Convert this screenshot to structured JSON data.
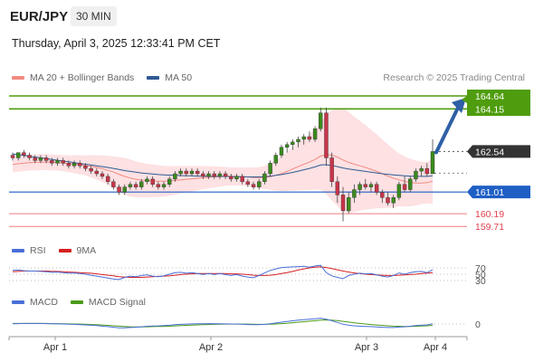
{
  "header": {
    "symbol": "EUR/JPY",
    "interval": "30 MIN",
    "datetime": "Thursday, April 3, 2025 12:33:41 PM CET"
  },
  "legend": {
    "bollinger": {
      "label": "MA 20 + Bollinger Bands",
      "color": "#f28b82"
    },
    "ma50": {
      "label": "MA 50",
      "color": "#2f5a93"
    },
    "credit": "Research © 2025 Trading Central"
  },
  "rsi_legend": {
    "rsi": "RSI",
    "rsi_color": "#4a6fd8",
    "ma": "9MA",
    "ma_color": "#d62020"
  },
  "macd_legend": {
    "macd": "MACD",
    "macd_color": "#4a6fd8",
    "signal": "MACD Signal",
    "signal_color": "#4a9a1a"
  },
  "chart_data": [
    {
      "type": "candlestick",
      "x_tick_labels": [
        "Apr 1",
        "Apr 2",
        "Apr 3",
        "Apr 4"
      ],
      "y_range": [
        159.2,
        165.2
      ],
      "current_price": 162.54,
      "resistance_levels": [
        164.64,
        164.15
      ],
      "support_levels": [
        161.01,
        160.19,
        159.71
      ],
      "level_colors": {
        "resistance": "#4f9d0e",
        "pivot": "#1f5fc4",
        "support": "#f07b84",
        "current": "#333333"
      },
      "target_arrow": {
        "from": 162.54,
        "to": 164.64
      },
      "candles": [
        [
          162.4,
          162.5,
          162.2,
          162.3
        ],
        [
          162.3,
          162.5,
          162.2,
          162.5
        ],
        [
          162.5,
          162.6,
          162.3,
          162.4
        ],
        [
          162.4,
          162.5,
          162.2,
          162.3
        ],
        [
          162.3,
          162.4,
          162.1,
          162.2
        ],
        [
          162.2,
          162.4,
          162.1,
          162.3
        ],
        [
          162.3,
          162.4,
          162.1,
          162.2
        ],
        [
          162.2,
          162.3,
          162.0,
          162.1
        ],
        [
          162.1,
          162.3,
          162.0,
          162.2
        ],
        [
          162.2,
          162.3,
          162.0,
          162.1
        ],
        [
          162.1,
          162.2,
          161.9,
          162.0
        ],
        [
          162.0,
          162.2,
          161.9,
          162.1
        ],
        [
          162.1,
          162.2,
          161.9,
          162.0
        ],
        [
          162.0,
          162.1,
          161.8,
          161.9
        ],
        [
          161.9,
          162.0,
          161.7,
          161.8
        ],
        [
          161.8,
          161.9,
          161.6,
          161.7
        ],
        [
          161.7,
          161.8,
          161.5,
          161.6
        ],
        [
          161.6,
          161.7,
          161.3,
          161.4
        ],
        [
          161.4,
          161.5,
          161.1,
          161.2
        ],
        [
          161.2,
          161.3,
          160.9,
          161.0
        ],
        [
          161.0,
          161.3,
          160.9,
          161.2
        ],
        [
          161.2,
          161.4,
          161.1,
          161.3
        ],
        [
          161.3,
          161.4,
          161.1,
          161.2
        ],
        [
          161.2,
          161.5,
          161.1,
          161.4
        ],
        [
          161.4,
          161.6,
          161.3,
          161.5
        ],
        [
          161.5,
          161.6,
          161.2,
          161.3
        ],
        [
          161.3,
          161.4,
          161.1,
          161.2
        ],
        [
          161.2,
          161.4,
          161.1,
          161.3
        ],
        [
          161.3,
          161.6,
          161.2,
          161.5
        ],
        [
          161.5,
          161.8,
          161.4,
          161.7
        ],
        [
          161.7,
          161.9,
          161.6,
          161.8
        ],
        [
          161.8,
          161.9,
          161.6,
          161.7
        ],
        [
          161.7,
          161.9,
          161.6,
          161.8
        ],
        [
          161.8,
          161.9,
          161.6,
          161.7
        ],
        [
          161.7,
          161.8,
          161.5,
          161.6
        ],
        [
          161.6,
          161.8,
          161.5,
          161.7
        ],
        [
          161.7,
          161.8,
          161.5,
          161.6
        ],
        [
          161.6,
          161.8,
          161.5,
          161.7
        ],
        [
          161.7,
          161.8,
          161.5,
          161.6
        ],
        [
          161.6,
          161.7,
          161.4,
          161.5
        ],
        [
          161.5,
          161.7,
          161.4,
          161.6
        ],
        [
          161.6,
          161.7,
          161.3,
          161.4
        ],
        [
          161.4,
          161.5,
          161.2,
          161.3
        ],
        [
          161.3,
          161.4,
          161.1,
          161.2
        ],
        [
          161.2,
          161.5,
          161.1,
          161.4
        ],
        [
          161.4,
          161.8,
          161.3,
          161.7
        ],
        [
          161.7,
          162.2,
          161.6,
          162.1
        ],
        [
          162.1,
          162.5,
          162.0,
          162.4
        ],
        [
          162.4,
          162.8,
          162.3,
          162.7
        ],
        [
          162.7,
          162.9,
          162.5,
          162.8
        ],
        [
          162.8,
          163.0,
          162.6,
          162.9
        ],
        [
          162.9,
          163.1,
          162.7,
          163.0
        ],
        [
          163.0,
          163.2,
          162.8,
          163.1
        ],
        [
          163.1,
          163.3,
          162.9,
          163.0
        ],
        [
          163.0,
          163.5,
          162.9,
          163.4
        ],
        [
          163.4,
          164.2,
          163.3,
          164.0
        ],
        [
          164.0,
          164.2,
          162.0,
          162.3
        ],
        [
          162.3,
          162.5,
          161.2,
          161.4
        ],
        [
          161.4,
          161.6,
          160.6,
          160.9
        ],
        [
          160.9,
          161.2,
          159.9,
          160.3
        ],
        [
          160.3,
          161.0,
          160.2,
          160.8
        ],
        [
          160.8,
          161.3,
          160.6,
          161.1
        ],
        [
          161.1,
          161.4,
          160.9,
          161.3
        ],
        [
          161.3,
          161.5,
          161.1,
          161.2
        ],
        [
          161.2,
          161.4,
          161.0,
          161.3
        ],
        [
          161.3,
          161.4,
          160.9,
          161.0
        ],
        [
          161.0,
          161.1,
          160.6,
          160.8
        ],
        [
          160.8,
          161.0,
          160.5,
          160.6
        ],
        [
          160.6,
          160.9,
          160.4,
          160.8
        ],
        [
          160.8,
          161.4,
          160.7,
          161.3
        ],
        [
          161.3,
          161.6,
          161.0,
          161.1
        ],
        [
          161.1,
          161.6,
          161.0,
          161.5
        ],
        [
          161.5,
          161.9,
          161.4,
          161.8
        ],
        [
          161.8,
          162.0,
          161.6,
          161.9
        ],
        [
          161.9,
          162.1,
          161.6,
          161.7
        ],
        [
          161.7,
          163.0,
          161.7,
          162.54
        ]
      ],
      "ma20": [
        162.05,
        162.08,
        162.1,
        162.12,
        162.13,
        162.14,
        162.14,
        162.13,
        162.12,
        162.1,
        162.08,
        162.06,
        162.04,
        162.01,
        161.98,
        161.94,
        161.89,
        161.83,
        161.76,
        161.68,
        161.6,
        161.54,
        161.49,
        161.46,
        161.44,
        161.43,
        161.42,
        161.42,
        161.43,
        161.45,
        161.47,
        161.49,
        161.51,
        161.53,
        161.55,
        161.57,
        161.58,
        161.59,
        161.6,
        161.6,
        161.6,
        161.59,
        161.58,
        161.56,
        161.55,
        161.56,
        161.59,
        161.64,
        161.71,
        161.79,
        161.88,
        161.97,
        162.06,
        162.14,
        162.24,
        162.37,
        162.42,
        162.4,
        162.33,
        162.22,
        162.13,
        162.06,
        162.0,
        161.94,
        161.87,
        161.79,
        161.7,
        161.61,
        161.53,
        161.47,
        161.41,
        161.37,
        161.35,
        161.35,
        161.36,
        161.42
      ],
      "ma50": [
        162.45,
        162.42,
        162.39,
        162.36,
        162.33,
        162.3,
        162.27,
        162.24,
        162.21,
        162.18,
        162.15,
        162.12,
        162.09,
        162.06,
        162.03,
        162.0,
        161.97,
        161.94,
        161.9,
        161.86,
        161.82,
        161.79,
        161.76,
        161.73,
        161.71,
        161.69,
        161.67,
        161.66,
        161.65,
        161.64,
        161.63,
        161.62,
        161.62,
        161.61,
        161.61,
        161.6,
        161.6,
        161.6,
        161.6,
        161.59,
        161.59,
        161.59,
        161.58,
        161.58,
        161.58,
        161.59,
        161.61,
        161.64,
        161.67,
        161.71,
        161.75,
        161.8,
        161.85,
        161.9,
        161.96,
        162.03,
        162.04,
        162.01,
        161.97,
        161.92,
        161.88,
        161.85,
        161.82,
        161.79,
        161.76,
        161.73,
        161.7,
        161.68,
        161.66,
        161.64,
        161.62,
        161.61,
        161.6,
        161.6,
        161.6,
        161.62
      ],
      "band_width": [
        0.3,
        0.3,
        0.3,
        0.3,
        0.3,
        0.3,
        0.3,
        0.3,
        0.3,
        0.3,
        0.32,
        0.34,
        0.36,
        0.38,
        0.42,
        0.46,
        0.5,
        0.55,
        0.6,
        0.65,
        0.7,
        0.7,
        0.68,
        0.66,
        0.64,
        0.62,
        0.6,
        0.58,
        0.56,
        0.54,
        0.52,
        0.5,
        0.48,
        0.46,
        0.44,
        0.42,
        0.4,
        0.38,
        0.36,
        0.34,
        0.34,
        0.34,
        0.36,
        0.38,
        0.4,
        0.44,
        0.5,
        0.58,
        0.66,
        0.74,
        0.82,
        0.9,
        0.98,
        1.06,
        1.14,
        1.28,
        1.5,
        1.7,
        1.85,
        1.95,
        1.9,
        1.8,
        1.7,
        1.6,
        1.5,
        1.4,
        1.3,
        1.2,
        1.1,
        1.0,
        0.95,
        0.9,
        0.85,
        0.8,
        0.78,
        0.85
      ]
    },
    {
      "type": "line",
      "name": "RSI",
      "y_tick_labels": [
        "70",
        "50",
        "30"
      ],
      "y_range": [
        20,
        80
      ],
      "rsi": [
        62,
        63,
        61,
        60,
        60,
        59,
        58,
        56,
        57,
        55,
        53,
        54,
        52,
        50,
        47,
        44,
        41,
        38,
        35,
        33,
        40,
        44,
        42,
        46,
        48,
        44,
        42,
        45,
        50,
        55,
        56,
        53,
        55,
        52,
        49,
        52,
        49,
        52,
        49,
        46,
        49,
        44,
        41,
        39,
        46,
        54,
        62,
        67,
        71,
        72,
        73,
        74,
        75,
        72,
        76,
        78,
        55,
        45,
        40,
        36,
        46,
        50,
        53,
        51,
        52,
        48,
        44,
        41,
        46,
        54,
        50,
        55,
        58,
        59,
        55,
        64
      ],
      "ma9": [
        58,
        59,
        60,
        60,
        60,
        60,
        60,
        59,
        59,
        58,
        57,
        56,
        55,
        54,
        53,
        51,
        49,
        47,
        45,
        42,
        41,
        40,
        40,
        40,
        41,
        42,
        43,
        44,
        45,
        47,
        49,
        50,
        51,
        52,
        52,
        52,
        52,
        52,
        52,
        51,
        51,
        50,
        49,
        47,
        46,
        46,
        47,
        49,
        52,
        55,
        59,
        63,
        67,
        70,
        72,
        73,
        71,
        68,
        64,
        60,
        57,
        54,
        52,
        50,
        49,
        48,
        47,
        46,
        46,
        47,
        48,
        49,
        50,
        52,
        53,
        55
      ]
    },
    {
      "type": "line",
      "name": "MACD",
      "y_tick_labels": [
        "0"
      ],
      "y_range": [
        -0.6,
        0.6
      ],
      "macd": [
        0.02,
        0.03,
        0.04,
        0.04,
        0.04,
        0.04,
        0.03,
        0.02,
        0.01,
        0,
        -0.02,
        -0.03,
        -0.05,
        -0.07,
        -0.1,
        -0.13,
        -0.17,
        -0.21,
        -0.26,
        -0.3,
        -0.3,
        -0.28,
        -0.26,
        -0.22,
        -0.18,
        -0.16,
        -0.15,
        -0.13,
        -0.1,
        -0.06,
        -0.03,
        -0.01,
        0.01,
        0.02,
        0.02,
        0.03,
        0.02,
        0.02,
        0.01,
        0,
        0,
        -0.02,
        -0.04,
        -0.06,
        -0.06,
        -0.03,
        0.02,
        0.08,
        0.14,
        0.2,
        0.25,
        0.3,
        0.34,
        0.37,
        0.41,
        0.46,
        0.38,
        0.26,
        0.12,
        -0.02,
        -0.09,
        -0.14,
        -0.17,
        -0.19,
        -0.21,
        -0.23,
        -0.26,
        -0.28,
        -0.28,
        -0.24,
        -0.22,
        -0.18,
        -0.13,
        -0.09,
        -0.07,
        0.02
      ],
      "signal": [
        0.04,
        0.04,
        0.04,
        0.04,
        0.04,
        0.04,
        0.04,
        0.03,
        0.03,
        0.02,
        0.01,
        0,
        -0.01,
        -0.02,
        -0.04,
        -0.06,
        -0.08,
        -0.11,
        -0.14,
        -0.17,
        -0.2,
        -0.22,
        -0.23,
        -0.23,
        -0.22,
        -0.21,
        -0.2,
        -0.19,
        -0.17,
        -0.15,
        -0.13,
        -0.11,
        -0.09,
        -0.07,
        -0.05,
        -0.04,
        -0.03,
        -0.02,
        -0.01,
        -0.01,
        0,
        -0.01,
        -0.01,
        -0.02,
        -0.03,
        -0.03,
        -0.02,
        0,
        0.03,
        0.06,
        0.1,
        0.14,
        0.18,
        0.22,
        0.26,
        0.3,
        0.32,
        0.31,
        0.27,
        0.21,
        0.15,
        0.09,
        0.04,
        0,
        -0.04,
        -0.08,
        -0.11,
        -0.14,
        -0.17,
        -0.18,
        -0.19,
        -0.19,
        -0.18,
        -0.16,
        -0.14,
        -0.11
      ]
    }
  ]
}
